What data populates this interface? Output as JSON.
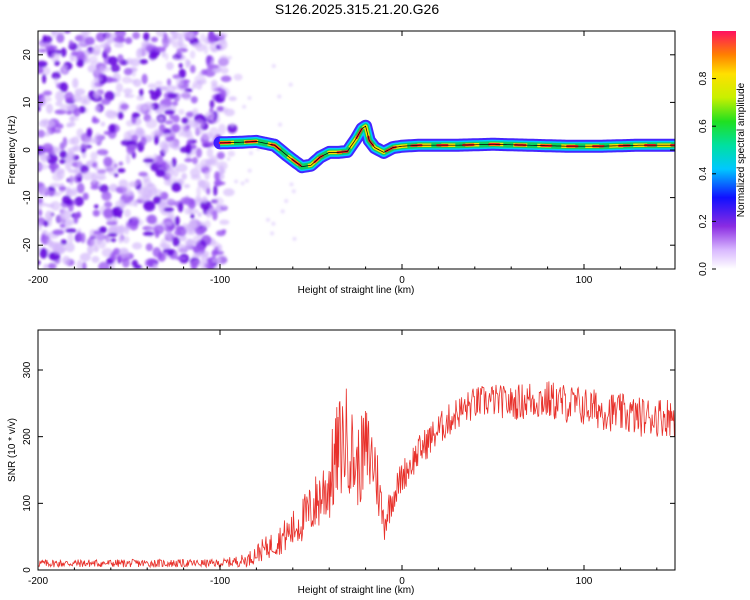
{
  "title": "S126.2025.315.21.20.G26",
  "chart_data": [
    {
      "type": "heatmap",
      "name": "spectrogram",
      "xlabel": "Height of straight line (km)",
      "ylabel": "Frequency (Hz)",
      "xlim": [
        -200,
        150
      ],
      "ylim": [
        -25,
        25
      ],
      "xticks": [
        -200,
        -100,
        0,
        100
      ],
      "xtick_labels": [
        "-200",
        "-100",
        "0",
        "100"
      ],
      "yticks": [
        20,
        10,
        0,
        -10,
        -20
      ],
      "ytick_labels": [
        "20",
        "10",
        "0",
        "-10",
        "-20"
      ],
      "noise_region_x": [
        -200,
        -90
      ],
      "signal_track": {
        "x": [
          -100,
          -90,
          -80,
          -70,
          -62,
          -55,
          -50,
          -45,
          -40,
          -35,
          -30,
          -25,
          -22,
          -20,
          -18,
          -15,
          -10,
          -5,
          0,
          10,
          20,
          30,
          50,
          70,
          90,
          110,
          130,
          150
        ],
        "y": [
          1.5,
          1.6,
          1.8,
          1.0,
          -1.5,
          -3.5,
          -3.2,
          -1.5,
          -0.5,
          -0.5,
          -0.3,
          2.5,
          4.5,
          5.0,
          2.0,
          0.5,
          -0.5,
          0.5,
          0.8,
          1.0,
          1.0,
          1.0,
          1.2,
          1.0,
          0.8,
          0.8,
          1.0,
          1.0
        ]
      },
      "colorbar": {
        "label": "Normalized spectral amplitude",
        "range": [
          0,
          1
        ],
        "ticks": [
          0.0,
          0.2,
          0.4,
          0.6,
          0.8
        ],
        "tick_labels": [
          "0.0",
          "0.2",
          "0.4",
          "0.6",
          "0.8"
        ]
      }
    },
    {
      "type": "line",
      "name": "snr",
      "xlabel": "Height of straight line (km)",
      "ylabel": "SNR (10 * v/v)",
      "xlim": [
        -200,
        150
      ],
      "ylim": [
        0,
        360
      ],
      "xticks": [
        -200,
        -100,
        0,
        100
      ],
      "xtick_labels": [
        "-200",
        "-100",
        "0",
        "100"
      ],
      "yticks": [
        0,
        100,
        200,
        300
      ],
      "ytick_labels": [
        "0",
        "100",
        "200",
        "300"
      ],
      "color": "#e8302a",
      "envelope": {
        "x": [
          -200,
          -150,
          -100,
          -85,
          -80,
          -70,
          -60,
          -50,
          -40,
          -35,
          -30,
          -25,
          -20,
          -15,
          -10,
          -5,
          0,
          10,
          20,
          30,
          40,
          50,
          60,
          70,
          80,
          90,
          100,
          110,
          120,
          130,
          140,
          150
        ],
        "y": [
          10,
          10,
          10,
          15,
          25,
          40,
          60,
          90,
          130,
          180,
          200,
          150,
          180,
          160,
          70,
          110,
          140,
          180,
          210,
          235,
          250,
          255,
          250,
          255,
          255,
          250,
          245,
          240,
          235,
          230,
          230,
          230
        ],
        "spread": [
          6,
          6,
          6,
          10,
          15,
          20,
          30,
          40,
          60,
          80,
          80,
          60,
          70,
          60,
          30,
          25,
          25,
          25,
          25,
          25,
          25,
          25,
          25,
          30,
          30,
          30,
          30,
          30,
          30,
          30,
          30,
          30
        ]
      }
    }
  ],
  "colors": {
    "noise": "#7a1fe0",
    "track_outer": "#3a1aff",
    "track_mid": "#10d060",
    "track_core": "#ff2020",
    "snr_line": "#e8302a"
  }
}
